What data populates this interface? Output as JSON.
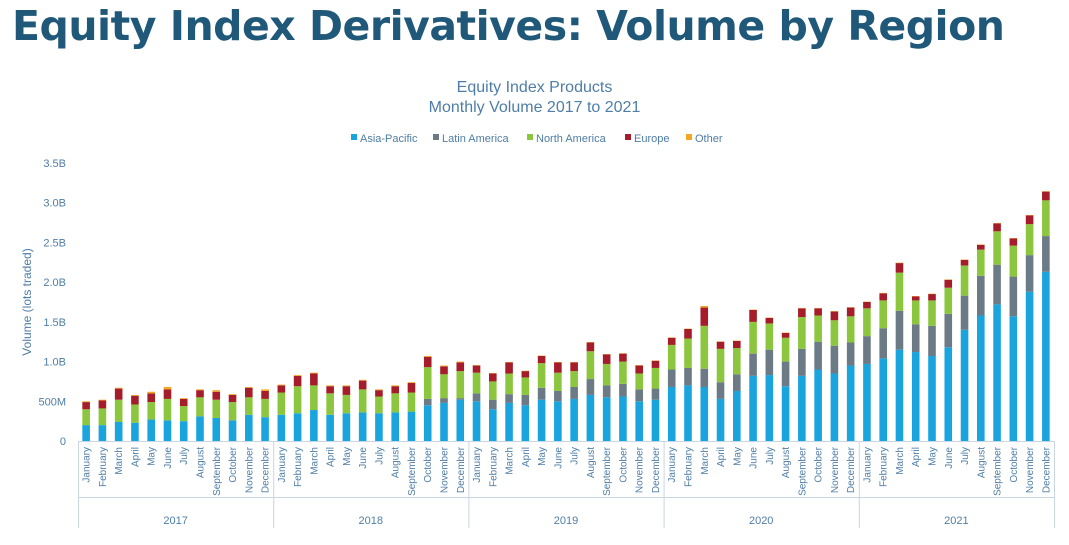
{
  "page": {
    "title": "Equity Index Derivatives: Volume by Region"
  },
  "chart_data": {
    "type": "bar",
    "stacked": true,
    "title": "Equity Index Products",
    "subtitle": "Monthly Volume 2017 to 2021",
    "xlabel": "",
    "ylabel": "Volume (lots traded)",
    "ylim": [
      0,
      3500000000
    ],
    "yticks": [
      0,
      500000000,
      1000000000,
      1500000000,
      2000000000,
      2500000000,
      3000000000,
      3500000000
    ],
    "ytick_labels": [
      "0",
      "500M",
      "1.0B",
      "1.5B",
      "2.0B",
      "2.5B",
      "3.0B",
      "3.5B"
    ],
    "grid": false,
    "legend_position": "top",
    "years": [
      "2017",
      "2018",
      "2019",
      "2020",
      "2021"
    ],
    "categories": [
      "January",
      "February",
      "March",
      "April",
      "May",
      "June",
      "July",
      "August",
      "September",
      "October",
      "November",
      "December",
      "January",
      "February",
      "March",
      "April",
      "May",
      "June",
      "July",
      "August",
      "September",
      "October",
      "November",
      "December",
      "January",
      "February",
      "March",
      "April",
      "May",
      "June",
      "July",
      "August",
      "September",
      "October",
      "November",
      "December",
      "January",
      "February",
      "March",
      "April",
      "May",
      "June",
      "July",
      "August",
      "September",
      "October",
      "November",
      "December",
      "January",
      "February",
      "March",
      "April",
      "May",
      "June",
      "July",
      "August",
      "September",
      "October",
      "November",
      "December"
    ],
    "series": [
      {
        "name": "Asia-Pacific",
        "color": "#1aa4dd",
        "values": [
          200000000,
          200000000,
          240000000,
          230000000,
          270000000,
          260000000,
          250000000,
          310000000,
          290000000,
          260000000,
          330000000,
          300000000,
          330000000,
          350000000,
          390000000,
          330000000,
          350000000,
          360000000,
          350000000,
          360000000,
          370000000,
          450000000,
          480000000,
          520000000,
          500000000,
          400000000,
          480000000,
          450000000,
          520000000,
          500000000,
          530000000,
          580000000,
          550000000,
          560000000,
          500000000,
          520000000,
          680000000,
          700000000,
          680000000,
          530000000,
          630000000,
          820000000,
          830000000,
          690000000,
          820000000,
          900000000,
          850000000,
          950000000,
          970000000,
          1040000000,
          1150000000,
          1120000000,
          1070000000,
          1180000000,
          1400000000,
          1580000000,
          1720000000,
          1570000000,
          1880000000,
          2130000000
        ]
      },
      {
        "name": "Latin America",
        "color": "#6c7a86",
        "values": [
          0,
          0,
          0,
          0,
          0,
          0,
          0,
          0,
          0,
          0,
          0,
          0,
          0,
          0,
          0,
          0,
          0,
          0,
          0,
          0,
          0,
          80000000,
          60000000,
          20000000,
          100000000,
          120000000,
          110000000,
          130000000,
          150000000,
          130000000,
          150000000,
          200000000,
          150000000,
          160000000,
          150000000,
          140000000,
          220000000,
          220000000,
          230000000,
          210000000,
          210000000,
          280000000,
          320000000,
          310000000,
          340000000,
          350000000,
          350000000,
          290000000,
          350000000,
          380000000,
          490000000,
          350000000,
          380000000,
          420000000,
          430000000,
          500000000,
          500000000,
          500000000,
          460000000,
          450000000
        ]
      },
      {
        "name": "North America",
        "color": "#8cc63f",
        "values": [
          200000000,
          210000000,
          280000000,
          230000000,
          220000000,
          270000000,
          190000000,
          240000000,
          230000000,
          230000000,
          220000000,
          230000000,
          280000000,
          340000000,
          310000000,
          270000000,
          230000000,
          290000000,
          210000000,
          240000000,
          240000000,
          400000000,
          300000000,
          340000000,
          260000000,
          230000000,
          260000000,
          220000000,
          310000000,
          230000000,
          200000000,
          350000000,
          270000000,
          280000000,
          200000000,
          260000000,
          310000000,
          370000000,
          540000000,
          420000000,
          330000000,
          400000000,
          330000000,
          300000000,
          400000000,
          330000000,
          320000000,
          330000000,
          350000000,
          350000000,
          480000000,
          300000000,
          320000000,
          330000000,
          380000000,
          330000000,
          420000000,
          390000000,
          390000000,
          450000000
        ]
      },
      {
        "name": "Europe",
        "color": "#a51c2a",
        "values": [
          90000000,
          100000000,
          140000000,
          110000000,
          110000000,
          120000000,
          90000000,
          90000000,
          100000000,
          90000000,
          120000000,
          100000000,
          90000000,
          130000000,
          150000000,
          90000000,
          110000000,
          110000000,
          80000000,
          90000000,
          120000000,
          130000000,
          100000000,
          110000000,
          90000000,
          100000000,
          140000000,
          80000000,
          90000000,
          130000000,
          110000000,
          110000000,
          120000000,
          100000000,
          100000000,
          90000000,
          90000000,
          120000000,
          230000000,
          90000000,
          90000000,
          150000000,
          70000000,
          60000000,
          110000000,
          90000000,
          110000000,
          110000000,
          80000000,
          90000000,
          120000000,
          50000000,
          80000000,
          100000000,
          70000000,
          60000000,
          100000000,
          90000000,
          110000000,
          110000000
        ]
      },
      {
        "name": "Other",
        "color": "#f5a623",
        "values": [
          10000000,
          10000000,
          10000000,
          10000000,
          20000000,
          30000000,
          10000000,
          10000000,
          20000000,
          10000000,
          10000000,
          20000000,
          10000000,
          10000000,
          10000000,
          10000000,
          10000000,
          10000000,
          10000000,
          10000000,
          10000000,
          10000000,
          10000000,
          10000000,
          5000000,
          5000000,
          5000000,
          5000000,
          5000000,
          5000000,
          5000000,
          5000000,
          5000000,
          5000000,
          5000000,
          5000000,
          5000000,
          5000000,
          20000000,
          5000000,
          5000000,
          5000000,
          5000000,
          5000000,
          5000000,
          5000000,
          5000000,
          5000000,
          5000000,
          5000000,
          5000000,
          5000000,
          5000000,
          5000000,
          5000000,
          5000000,
          5000000,
          5000000,
          5000000,
          5000000
        ]
      }
    ]
  }
}
